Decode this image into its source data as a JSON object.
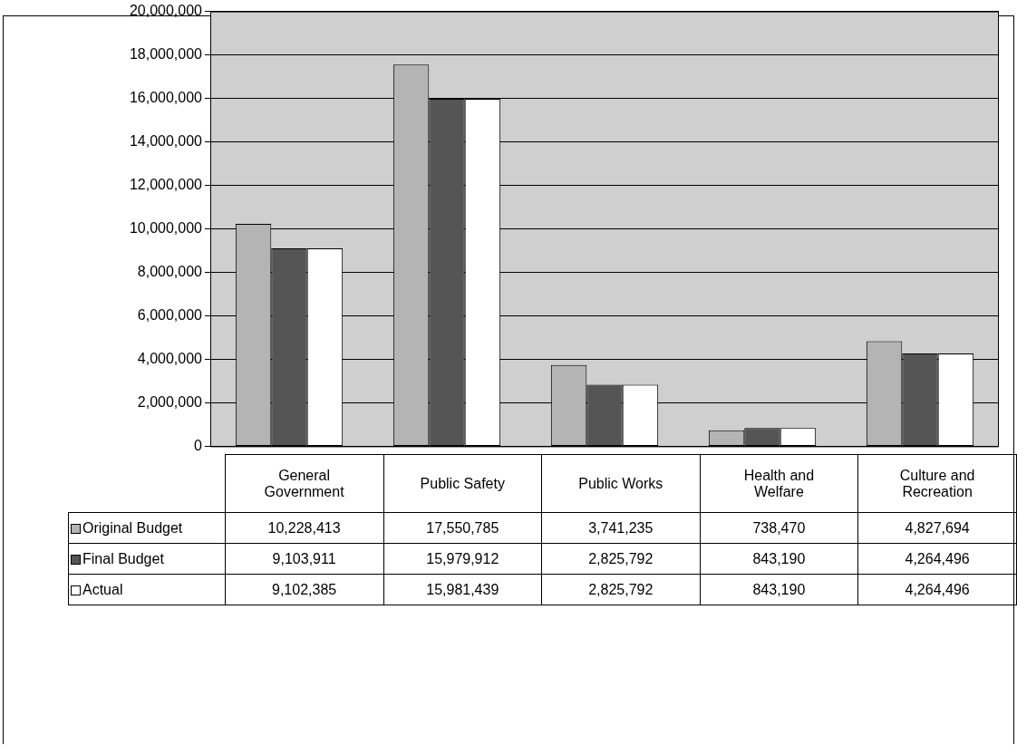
{
  "chart_data": {
    "type": "bar",
    "categories": [
      "General Government",
      "Public Safety",
      "Public Works",
      "Health and Welfare",
      "Culture and Recreation"
    ],
    "series": [
      {
        "name": "Original Budget",
        "color": "#b4b4b4",
        "values": [
          10228413,
          17550785,
          3741235,
          738470,
          4827694
        ],
        "value_labels": [
          "10,228,413",
          "17,550,785",
          "3,741,235",
          "738,470",
          "4,827,694"
        ]
      },
      {
        "name": "Final Budget",
        "color": "#555555",
        "values": [
          9103911,
          15979912,
          2825792,
          843190,
          4264496
        ],
        "value_labels": [
          "9,103,911",
          "15,979,912",
          "2,825,792",
          "843,190",
          "4,264,496"
        ]
      },
      {
        "name": "Actual",
        "color": "#ffffff",
        "values": [
          9102385,
          15981439,
          2825792,
          843190,
          4264496
        ],
        "value_labels": [
          "9,102,385",
          "15,981,439",
          "2,825,792",
          "843,190",
          "4,264,496"
        ]
      }
    ],
    "ylim": [
      0,
      20000000
    ],
    "yticks": [
      {
        "value": 0,
        "label": "0"
      },
      {
        "value": 2000000,
        "label": "2,000,000"
      },
      {
        "value": 4000000,
        "label": "4,000,000"
      },
      {
        "value": 6000000,
        "label": "6,000,000"
      },
      {
        "value": 8000000,
        "label": "8,000,000"
      },
      {
        "value": 10000000,
        "label": "10,000,000"
      },
      {
        "value": 12000000,
        "label": "12,000,000"
      },
      {
        "value": 14000000,
        "label": "14,000,000"
      },
      {
        "value": 16000000,
        "label": "16,000,000"
      },
      {
        "value": 18000000,
        "label": "18,000,000"
      },
      {
        "value": 20000000,
        "label": "20,000,000"
      }
    ],
    "grid": "y",
    "legend": "bottom"
  }
}
